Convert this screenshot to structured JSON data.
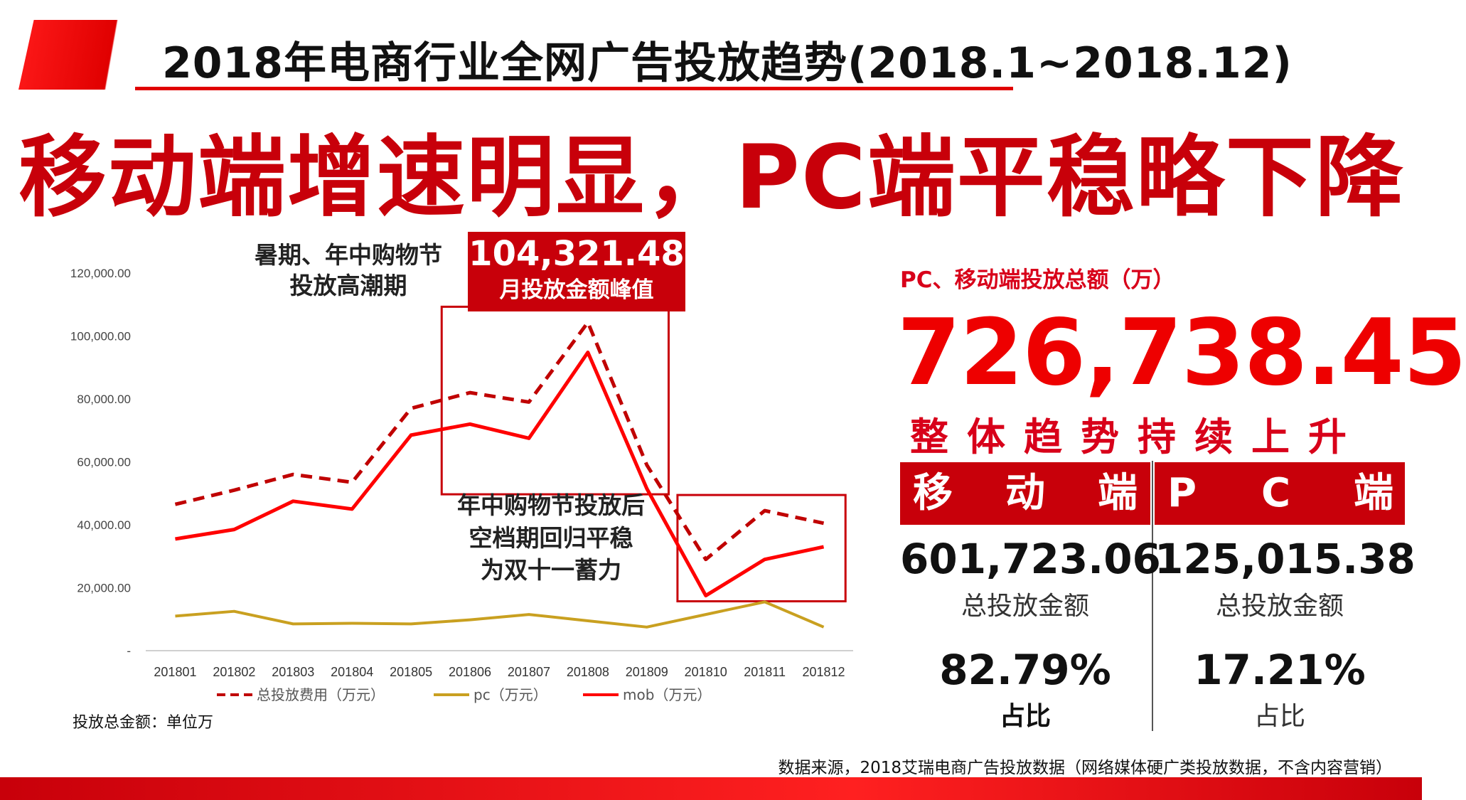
{
  "title": "2018年电商行业全网广告投放趋势(2018.1~2018.12)",
  "headline": "移动端增速明显，PC端平稳略下降",
  "annotations": {
    "peak_note": [
      "暑期、年中购物节",
      "投放高潮期"
    ],
    "peak_value": "104,321.48",
    "peak_label": "月投放金额峰值",
    "post_note": [
      "年中购物节投放后",
      "空档期回归平稳",
      "为双十一蓄力"
    ]
  },
  "unit_note": "投放总金额：单位万",
  "summary": {
    "subtitle": "PC、移动端投放总额（万）",
    "total": "726,738.45",
    "trend": "整体趋势持续上升",
    "mobile": {
      "header_chars": [
        "移",
        "动",
        "端"
      ],
      "value": "601,723.06",
      "value_label": "总投放金额",
      "share": "82.79%",
      "share_label": "占比"
    },
    "pc": {
      "header_chars": [
        "P",
        "C",
        "端"
      ],
      "value": "125,015.38",
      "value_label": "总投放金额",
      "share": "17.21%",
      "share_label": "占比"
    }
  },
  "source": "数据来源，2018艾瑞电商广告投放数据（网络媒体硬广类投放数据，不含内容营销）",
  "colors": {
    "total": "#c00000",
    "pc": "#c9a020",
    "mob": "#ff0000",
    "accent": "#c8000a"
  },
  "chart_data": {
    "type": "line",
    "categories": [
      "201801",
      "201802",
      "201803",
      "201804",
      "201805",
      "201806",
      "201807",
      "201808",
      "201809",
      "201810",
      "201811",
      "201812"
    ],
    "series": [
      {
        "name": "总投放费用（万元）",
        "style": "dashed",
        "values": [
          46500,
          51000,
          56000,
          53500,
          77000,
          82000,
          79000,
          104321.48,
          59000,
          29000,
          44500,
          40500
        ]
      },
      {
        "name": "pc（万元）",
        "style": "solid",
        "values": [
          11000,
          12500,
          8500,
          8700,
          8500,
          9800,
          11500,
          9500,
          7500,
          11500,
          15500,
          7500
        ]
      },
      {
        "name": "mob（万元）",
        "style": "solid",
        "values": [
          35500,
          38500,
          47500,
          45000,
          68500,
          72000,
          67500,
          94800,
          51500,
          17500,
          29000,
          33000
        ]
      }
    ],
    "ylim": [
      0,
      120000
    ],
    "yticks": [
      "-",
      "20,000.00",
      "40,000.00",
      "60,000.00",
      "80,000.00",
      "100,000.00",
      "120,000.00"
    ],
    "legend_position": "bottom",
    "highlight_boxes": [
      {
        "from": "201806",
        "to": "201809"
      },
      {
        "from": "201810",
        "to": "201812"
      }
    ]
  }
}
